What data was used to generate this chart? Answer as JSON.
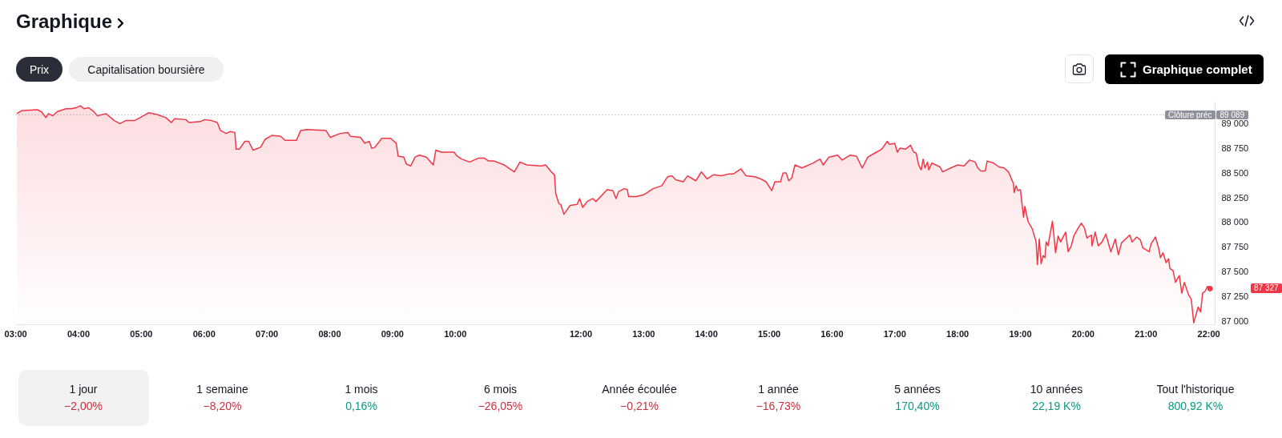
{
  "chart_data": {
    "type": "area",
    "title": "Graphique",
    "x": [
      3.02,
      3.09,
      3.34,
      3.41,
      3.48,
      3.52,
      3.59,
      3.66,
      3.8,
      3.89,
      3.96,
      4.03,
      4.09,
      4.16,
      4.23,
      4.3,
      4.44,
      4.57,
      4.66,
      4.75,
      4.89,
      4.98,
      5.12,
      5.26,
      5.39,
      5.48,
      5.53,
      5.71,
      5.76,
      5.94,
      6.01,
      6.12,
      6.21,
      6.26,
      6.35,
      6.42,
      6.49,
      6.51,
      6.56,
      6.65,
      6.71,
      6.78,
      6.9,
      6.97,
      7.08,
      7.22,
      7.29,
      7.47,
      7.54,
      7.63,
      7.94,
      8.01,
      8.17,
      8.29,
      8.33,
      8.49,
      8.56,
      8.63,
      8.67,
      8.72,
      8.83,
      8.97,
      9.06,
      9.09,
      9.18,
      9.22,
      9.29,
      9.36,
      9.43,
      9.54,
      9.65,
      9.69,
      9.78,
      9.98,
      10.03,
      10.1,
      10.23,
      10.37,
      10.46,
      10.53,
      10.62,
      10.78,
      10.94,
      11.03,
      11.14,
      11.37,
      11.44,
      11.53,
      11.58,
      11.6,
      11.65,
      11.68,
      11.73,
      11.83,
      11.94,
      11.98,
      12.03,
      12.1,
      12.19,
      12.24,
      12.42,
      12.51,
      12.56,
      12.6,
      12.69,
      12.74,
      12.76,
      12.88,
      13.01,
      13.15,
      13.29,
      13.38,
      13.45,
      13.51,
      13.63,
      13.7,
      13.83,
      13.92,
      14.01,
      14.11,
      14.24,
      14.36,
      14.43,
      14.55,
      14.63,
      14.77,
      14.86,
      14.95,
      15.04,
      15.09,
      15.18,
      15.22,
      15.27,
      15.31,
      15.36,
      15.41,
      15.52,
      15.7,
      15.81,
      15.86,
      15.95,
      16.09,
      16.16,
      16.29,
      16.39,
      16.48,
      16.57,
      16.68,
      16.79,
      16.88,
      16.91,
      17.0,
      17.04,
      17.08,
      17.17,
      17.25,
      17.3,
      17.34,
      17.38,
      17.42,
      17.45,
      17.48,
      17.52,
      17.54,
      17.59,
      17.72,
      17.76,
      17.89,
      18.0,
      18.1,
      18.19,
      18.28,
      18.32,
      18.37,
      18.44,
      18.47,
      18.57,
      18.66,
      18.74,
      18.81,
      18.89,
      18.9,
      18.93,
      18.96,
      19.0,
      19.05,
      19.07,
      19.12,
      19.19,
      19.25,
      19.27,
      19.3,
      19.33,
      19.36,
      19.39,
      19.41,
      19.44,
      19.47,
      19.51,
      19.56,
      19.6,
      19.64,
      19.68,
      19.72,
      19.76,
      19.81,
      19.85,
      19.91,
      19.97,
      20.02,
      20.06,
      20.13,
      20.14,
      20.19,
      20.24,
      20.3,
      20.36,
      20.44,
      20.51,
      20.56,
      20.61,
      20.74,
      20.78,
      20.85,
      20.91,
      20.95,
      21.0,
      21.05,
      21.08,
      21.15,
      21.2,
      21.23,
      21.27,
      21.32,
      21.36,
      21.38,
      21.43,
      21.47,
      21.53,
      21.57,
      21.61,
      21.68,
      21.72,
      21.76,
      21.83,
      21.87,
      21.9,
      21.94,
      21.98,
      22.02
    ],
    "values": [
      89100,
      89130,
      89140,
      89120,
      89060,
      89100,
      89080,
      89120,
      89150,
      89150,
      89160,
      89180,
      89150,
      89160,
      89130,
      89080,
      89100,
      89030,
      89000,
      89030,
      89030,
      89060,
      89110,
      89090,
      89060,
      89010,
      89050,
      89040,
      89010,
      89020,
      89040,
      89030,
      89010,
      88930,
      88900,
      88920,
      88910,
      88740,
      88740,
      88820,
      88820,
      88730,
      88760,
      88840,
      88880,
      88870,
      88830,
      88830,
      88930,
      88940,
      88930,
      88860,
      88900,
      88910,
      88870,
      88860,
      88800,
      88820,
      88750,
      88760,
      88850,
      88850,
      88800,
      88670,
      88660,
      88590,
      88570,
      88660,
      88680,
      88660,
      88580,
      88730,
      88710,
      88710,
      88670,
      88640,
      88610,
      88650,
      88650,
      88620,
      88620,
      88580,
      88510,
      88610,
      88580,
      88570,
      88580,
      88510,
      88480,
      88290,
      88190,
      88180,
      88080,
      88170,
      88180,
      88240,
      88150,
      88210,
      88240,
      88210,
      88330,
      88320,
      88240,
      88310,
      88340,
      88330,
      88260,
      88260,
      88280,
      88340,
      88370,
      88460,
      88470,
      88430,
      88410,
      88470,
      88420,
      88510,
      88440,
      88480,
      88470,
      88490,
      88490,
      88540,
      88470,
      88460,
      88440,
      88410,
      88320,
      88410,
      88410,
      88500,
      88500,
      88420,
      88450,
      88580,
      88550,
      88600,
      88640,
      88580,
      88660,
      88680,
      88630,
      88680,
      88670,
      88550,
      88660,
      88700,
      88740,
      88820,
      88790,
      88800,
      88710,
      88750,
      88740,
      88780,
      88710,
      88700,
      88580,
      88530,
      88640,
      88550,
      88610,
      88530,
      88600,
      88560,
      88510,
      88550,
      88580,
      88570,
      88630,
      88610,
      88550,
      88520,
      88520,
      88620,
      88600,
      88560,
      88550,
      88510,
      88390,
      88300,
      88370,
      88320,
      88330,
      88050,
      88160,
      88010,
      87930,
      87800,
      87570,
      87830,
      87580,
      87660,
      87640,
      87800,
      87760,
      87870,
      88010,
      87690,
      87860,
      87800,
      87850,
      87900,
      87700,
      87760,
      87860,
      87930,
      87990,
      87940,
      87840,
      87870,
      87760,
      87900,
      87760,
      87800,
      87880,
      87700,
      87830,
      87670,
      87790,
      87870,
      87800,
      87850,
      87820,
      87740,
      87720,
      87700,
      87780,
      87850,
      87740,
      87640,
      87690,
      87590,
      87630,
      87530,
      87510,
      87390,
      87460,
      87280,
      87390,
      87260,
      87220,
      86980,
      87140,
      87090,
      87280,
      87300,
      87350,
      87327
    ],
    "color": "#f23645",
    "xlim": [
      3,
      22.1
    ],
    "xticks": [
      {
        "value": 3,
        "label": "03:00"
      },
      {
        "value": 4,
        "label": "04:00"
      },
      {
        "value": 5,
        "label": "05:00"
      },
      {
        "value": 6,
        "label": "06:00"
      },
      {
        "value": 7,
        "label": "07:00"
      },
      {
        "value": 8,
        "label": "08:00"
      },
      {
        "value": 9,
        "label": "09:00"
      },
      {
        "value": 10,
        "label": "10:00"
      },
      {
        "value": 12,
        "label": "12:00"
      },
      {
        "value": 13,
        "label": "13:00"
      },
      {
        "value": 14,
        "label": "14:00"
      },
      {
        "value": 15,
        "label": "15:00"
      },
      {
        "value": 16,
        "label": "16:00"
      },
      {
        "value": 17,
        "label": "17:00"
      },
      {
        "value": 18,
        "label": "18:00"
      },
      {
        "value": 19,
        "label": "19:00"
      },
      {
        "value": 20,
        "label": "20:00"
      },
      {
        "value": 21,
        "label": "21:00"
      },
      {
        "value": 22,
        "label": "22:00"
      }
    ],
    "ylim": [
      86960,
      89220
    ],
    "yticks": [
      {
        "value": 87000,
        "label": "87 000"
      },
      {
        "value": 87250,
        "label": "87 250"
      },
      {
        "value": 87500,
        "label": "87 500"
      },
      {
        "value": 87750,
        "label": "87 750"
      },
      {
        "value": 88000,
        "label": "88 000"
      },
      {
        "value": 88250,
        "label": "88 250"
      },
      {
        "value": 88500,
        "label": "88 500"
      },
      {
        "value": 88750,
        "label": "88 750"
      },
      {
        "value": 89000,
        "label": "89 000"
      }
    ],
    "ref_lines": [
      {
        "axis": "y",
        "value": 89089,
        "label": "Clôture préc",
        "color": "#8f929b",
        "line_style": "dotted"
      }
    ],
    "annotations": [
      "Prix",
      "Capitalisation boursière",
      "Graphique complet",
      "87 327",
      "89 089",
      "1 jour",
      "−2,00%",
      "1 semaine",
      "−8,20%",
      "1 mois",
      "0,16%",
      "6 mois",
      "−26,05%",
      "Année écoulée",
      "−0,21%",
      "1 année",
      "−16,73%",
      "5 années",
      "170,40%",
      "10 années",
      "22,19 K%",
      "Tout l'historique",
      "800,92 K%"
    ]
  }
}
